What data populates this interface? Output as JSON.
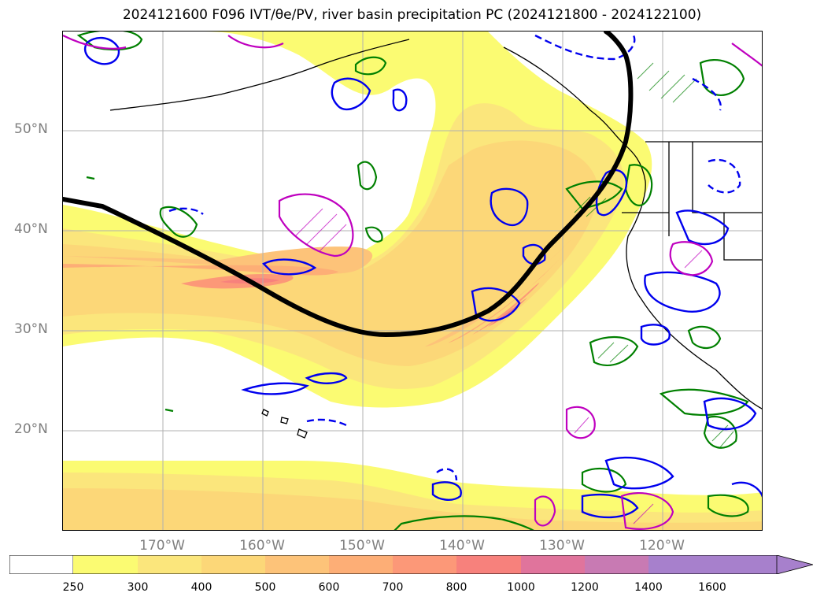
{
  "title": "2024121600 F096 IVT/θe/PV, river basin precipitation PC (2024121800 - 2024122100)",
  "lat_labels": [
    "50°N",
    "40°N",
    "30°N",
    "20°N"
  ],
  "lon_labels": [
    "170°W",
    "160°W",
    "150°W",
    "140°W",
    "130°W",
    "120°W"
  ],
  "colorbar": {
    "levels": [
      "250",
      "300",
      "400",
      "500",
      "600",
      "700",
      "800",
      "1000",
      "1200",
      "1400",
      "1600"
    ],
    "colors": [
      "#ffffff",
      "#fbfb72",
      "#fbe67c",
      "#fcd778",
      "#fdc379",
      "#fdae76",
      "#fc9878",
      "#f7817c",
      "#e0749c",
      "#c87ab3",
      "#a780cc"
    ],
    "extend": "max"
  },
  "colors": {
    "jet_line": "#000000",
    "contour_blue": "#0000ee",
    "contour_green": "#008000",
    "contour_magenta": "#bf00bf",
    "coastline": "#000000",
    "grid": "#b0b0b0",
    "tick_label": "#7f7f7f"
  }
}
